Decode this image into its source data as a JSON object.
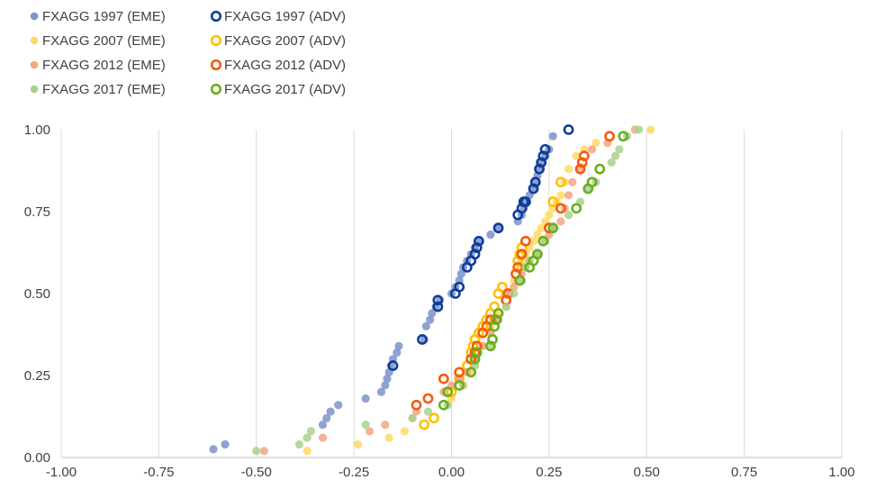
{
  "chart_data": {
    "type": "scatter",
    "title": "",
    "xlabel": "",
    "ylabel": "",
    "xlim": [
      -1.0,
      1.0
    ],
    "ylim": [
      0.0,
      1.0
    ],
    "x_ticks": [
      "-1.00",
      "-0.75",
      "-0.50",
      "-0.25",
      "0.00",
      "0.25",
      "0.50",
      "0.75",
      "1.00"
    ],
    "y_ticks": [
      "0.00",
      "0.25",
      "0.50",
      "0.75",
      "1.00"
    ],
    "grid": "vertical",
    "legend_position": "top-left",
    "series": [
      {
        "name": "FXAGG 1997 (EME)",
        "color": "#7B93C9",
        "marker": "filled",
        "x": [
          -0.61,
          -0.58,
          -0.29,
          -0.31,
          -0.32,
          -0.33,
          -0.22,
          -0.18,
          -0.17,
          -0.165,
          -0.16,
          -0.155,
          -0.15,
          -0.14,
          -0.135,
          -0.07,
          -0.065,
          -0.055,
          -0.05,
          -0.04,
          -0.03,
          0.0,
          0.01,
          0.02,
          0.025,
          0.03,
          0.04,
          0.05,
          0.06,
          0.07,
          0.1,
          0.12,
          0.17,
          0.18,
          0.185,
          0.19,
          0.2,
          0.21,
          0.215,
          0.22,
          0.225,
          0.23,
          0.24,
          0.25,
          0.26
        ],
        "y": [
          0.025,
          0.04,
          0.16,
          0.14,
          0.12,
          0.1,
          0.18,
          0.2,
          0.22,
          0.24,
          0.26,
          0.28,
          0.3,
          0.32,
          0.34,
          0.36,
          0.4,
          0.42,
          0.44,
          0.46,
          0.48,
          0.5,
          0.52,
          0.54,
          0.56,
          0.58,
          0.6,
          0.62,
          0.64,
          0.66,
          0.68,
          0.7,
          0.72,
          0.74,
          0.76,
          0.78,
          0.8,
          0.82,
          0.84,
          0.86,
          0.88,
          0.9,
          0.92,
          0.94,
          0.98
        ]
      },
      {
        "name": "FXAGG 1997 (ADV)",
        "color": "#0F3D99",
        "marker": "hollow",
        "x": [
          -0.15,
          -0.075,
          -0.035,
          -0.035,
          0.01,
          0.02,
          0.04,
          0.05,
          0.06,
          0.065,
          0.07,
          0.12,
          0.17,
          0.18,
          0.185,
          0.19,
          0.21,
          0.215,
          0.225,
          0.23,
          0.235,
          0.24,
          0.3
        ],
        "y": [
          0.28,
          0.36,
          0.46,
          0.48,
          0.5,
          0.52,
          0.58,
          0.6,
          0.62,
          0.64,
          0.66,
          0.7,
          0.74,
          0.76,
          0.78,
          0.78,
          0.82,
          0.84,
          0.88,
          0.9,
          0.92,
          0.94,
          1.0
        ]
      },
      {
        "name": "FXAGG 2007 (EME)",
        "color": "#FFD966",
        "marker": "filled",
        "x": [
          -0.37,
          -0.24,
          -0.16,
          -0.12,
          0.0,
          0.03,
          0.05,
          0.06,
          0.08,
          0.1,
          0.12,
          0.14,
          0.16,
          0.175,
          0.18,
          0.19,
          0.2,
          0.21,
          0.22,
          0.23,
          0.24,
          0.25,
          0.26,
          0.27,
          0.28,
          0.29,
          0.3,
          0.32,
          0.34,
          0.37,
          0.51
        ],
        "y": [
          0.02,
          0.04,
          0.06,
          0.08,
          0.18,
          0.22,
          0.26,
          0.3,
          0.34,
          0.4,
          0.44,
          0.5,
          0.54,
          0.58,
          0.6,
          0.62,
          0.64,
          0.66,
          0.68,
          0.7,
          0.72,
          0.74,
          0.76,
          0.78,
          0.8,
          0.84,
          0.88,
          0.92,
          0.94,
          0.96,
          1.0
        ]
      },
      {
        "name": "FXAGG 2007 (ADV)",
        "color": "#FFC000",
        "marker": "hollow",
        "x": [
          -0.07,
          -0.045,
          0.0,
          0.02,
          0.04,
          0.05,
          0.055,
          0.06,
          0.07,
          0.08,
          0.09,
          0.1,
          0.11,
          0.12,
          0.13,
          0.14,
          0.17,
          0.175,
          0.18,
          0.26,
          0.28
        ],
        "y": [
          0.1,
          0.12,
          0.2,
          0.24,
          0.28,
          0.32,
          0.34,
          0.36,
          0.38,
          0.4,
          0.42,
          0.44,
          0.46,
          0.5,
          0.52,
          0.48,
          0.6,
          0.62,
          0.64,
          0.78,
          0.84
        ]
      },
      {
        "name": "FXAGG 2012 (EME)",
        "color": "#F4A582",
        "marker": "filled",
        "x": [
          -0.48,
          -0.33,
          -0.21,
          -0.17,
          -0.1,
          -0.09,
          -0.02,
          0.0,
          0.02,
          0.04,
          0.06,
          0.08,
          0.1,
          0.12,
          0.14,
          0.15,
          0.16,
          0.17,
          0.18,
          0.19,
          0.2,
          0.22,
          0.24,
          0.25,
          0.26,
          0.28,
          0.29,
          0.3,
          0.31,
          0.33,
          0.36,
          0.4,
          0.47
        ],
        "y": [
          0.02,
          0.06,
          0.08,
          0.1,
          0.12,
          0.14,
          0.2,
          0.22,
          0.24,
          0.26,
          0.3,
          0.34,
          0.38,
          0.42,
          0.46,
          0.5,
          0.52,
          0.54,
          0.56,
          0.58,
          0.6,
          0.62,
          0.66,
          0.68,
          0.7,
          0.72,
          0.76,
          0.8,
          0.84,
          0.88,
          0.94,
          0.96,
          1.0
        ]
      },
      {
        "name": "FXAGG 2012 (ADV)",
        "color": "#F25C0F",
        "marker": "hollow",
        "x": [
          -0.09,
          -0.06,
          -0.02,
          0.02,
          0.05,
          0.06,
          0.065,
          0.08,
          0.09,
          0.1,
          0.14,
          0.145,
          0.165,
          0.17,
          0.18,
          0.19,
          0.25,
          0.28,
          0.33,
          0.335,
          0.34,
          0.405
        ],
        "y": [
          0.16,
          0.18,
          0.24,
          0.26,
          0.3,
          0.32,
          0.34,
          0.38,
          0.4,
          0.42,
          0.48,
          0.5,
          0.56,
          0.58,
          0.62,
          0.66,
          0.7,
          0.76,
          0.88,
          0.9,
          0.92,
          0.98
        ]
      },
      {
        "name": "FXAGG 2017 (EME)",
        "color": "#A9D18E",
        "marker": "filled",
        "x": [
          -0.5,
          -0.39,
          -0.37,
          -0.36,
          -0.22,
          -0.1,
          -0.06,
          -0.01,
          0.03,
          0.06,
          0.1,
          0.14,
          0.16,
          0.18,
          0.19,
          0.2,
          0.22,
          0.24,
          0.26,
          0.3,
          0.33,
          0.35,
          0.37,
          0.41,
          0.42,
          0.43,
          0.45,
          0.48
        ],
        "y": [
          0.02,
          0.04,
          0.06,
          0.08,
          0.1,
          0.12,
          0.14,
          0.16,
          0.22,
          0.28,
          0.34,
          0.46,
          0.5,
          0.54,
          0.58,
          0.6,
          0.62,
          0.66,
          0.7,
          0.74,
          0.78,
          0.82,
          0.84,
          0.9,
          0.92,
          0.94,
          0.98,
          1.0
        ]
      },
      {
        "name": "FXAGG 2017 (ADV)",
        "color": "#6AAF1E",
        "marker": "hollow",
        "x": [
          -0.02,
          -0.01,
          0.02,
          0.05,
          0.06,
          0.065,
          0.1,
          0.105,
          0.11,
          0.115,
          0.12,
          0.175,
          0.2,
          0.21,
          0.22,
          0.235,
          0.26,
          0.32,
          0.35,
          0.36,
          0.38,
          0.44
        ],
        "y": [
          0.16,
          0.2,
          0.22,
          0.26,
          0.3,
          0.32,
          0.34,
          0.36,
          0.4,
          0.42,
          0.44,
          0.54,
          0.58,
          0.6,
          0.62,
          0.66,
          0.7,
          0.76,
          0.82,
          0.84,
          0.88,
          0.98
        ]
      }
    ]
  }
}
